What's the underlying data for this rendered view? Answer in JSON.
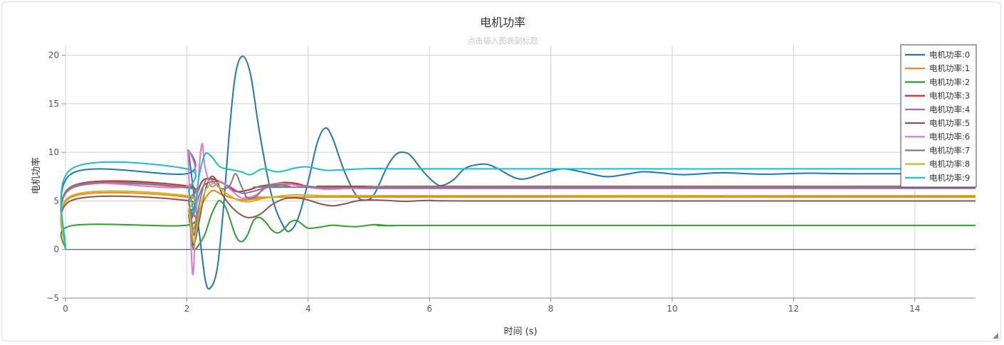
{
  "chart_data": {
    "type": "line",
    "title": "电机功率",
    "subtitle": "点击输入图表副标题",
    "xlabel": "时间 (s)",
    "ylabel": "电机功率",
    "xlim": [
      0,
      15
    ],
    "ylim": [
      -5,
      21
    ],
    "xticks": [
      0,
      2,
      4,
      6,
      8,
      10,
      12,
      14
    ],
    "yticks": [
      -5,
      0,
      5,
      10,
      15,
      20
    ],
    "grid": true,
    "legend_position": "top-right",
    "series": [
      {
        "name": "电机功率:0",
        "color": "#1f77b4",
        "points": [
          [
            0,
            0
          ],
          [
            0.1,
            7.8
          ],
          [
            2.0,
            7.8
          ],
          [
            2.02,
            10.2
          ],
          [
            2.1,
            6.5
          ],
          [
            2.2,
            2.0
          ],
          [
            2.3,
            -3.0
          ],
          [
            2.38,
            -4.0
          ],
          [
            2.5,
            -2.0
          ],
          [
            2.6,
            4.0
          ],
          [
            2.7,
            12.0
          ],
          [
            2.8,
            18.0
          ],
          [
            2.92,
            19.9
          ],
          [
            3.05,
            18.0
          ],
          [
            3.2,
            12.0
          ],
          [
            3.4,
            5.5
          ],
          [
            3.6,
            2.3
          ],
          [
            3.72,
            2.0
          ],
          [
            3.85,
            3.5
          ],
          [
            4.0,
            7.0
          ],
          [
            4.15,
            11.0
          ],
          [
            4.28,
            12.5
          ],
          [
            4.4,
            11.5
          ],
          [
            4.6,
            8.0
          ],
          [
            4.8,
            5.5
          ],
          [
            4.97,
            5.1
          ],
          [
            5.1,
            5.8
          ],
          [
            5.3,
            8.5
          ],
          [
            5.45,
            9.8
          ],
          [
            5.58,
            10.0
          ],
          [
            5.7,
            9.6
          ],
          [
            5.9,
            8.0
          ],
          [
            6.1,
            6.8
          ],
          [
            6.22,
            6.6
          ],
          [
            6.4,
            7.2
          ],
          [
            6.6,
            8.4
          ],
          [
            6.9,
            8.8
          ],
          [
            7.1,
            8.4
          ],
          [
            7.4,
            7.4
          ],
          [
            7.6,
            7.3
          ],
          [
            7.9,
            7.9
          ],
          [
            8.2,
            8.3
          ],
          [
            8.5,
            8.0
          ],
          [
            8.9,
            7.5
          ],
          [
            9.2,
            7.7
          ],
          [
            9.5,
            8.0
          ],
          [
            9.8,
            7.9
          ],
          [
            10.2,
            7.7
          ],
          [
            10.8,
            7.9
          ],
          [
            11.5,
            7.75
          ],
          [
            12.2,
            7.85
          ],
          [
            13.0,
            7.8
          ],
          [
            15.0,
            7.8
          ]
        ]
      },
      {
        "name": "电机功率:1",
        "color": "#ff7f0e",
        "points": [
          [
            0,
            0
          ],
          [
            0.1,
            5.4
          ],
          [
            2.0,
            5.4
          ],
          [
            2.03,
            4.0
          ],
          [
            2.1,
            2.0
          ],
          [
            2.2,
            4.0
          ],
          [
            2.4,
            6.0
          ],
          [
            2.6,
            5.6
          ],
          [
            2.9,
            5.1
          ],
          [
            3.3,
            5.3
          ],
          [
            4.0,
            5.4
          ],
          [
            15.0,
            5.4
          ]
        ]
      },
      {
        "name": "电机功率:2",
        "color": "#2ca02c",
        "points": [
          [
            0,
            0
          ],
          [
            0.1,
            2.45
          ],
          [
            2.0,
            2.5
          ],
          [
            2.03,
            4.0
          ],
          [
            2.08,
            1.0
          ],
          [
            2.12,
            0.0
          ],
          [
            2.2,
            0.5
          ],
          [
            2.3,
            1.6
          ],
          [
            2.4,
            3.5
          ],
          [
            2.5,
            4.8
          ],
          [
            2.55,
            5.0
          ],
          [
            2.65,
            4.2
          ],
          [
            2.8,
            1.5
          ],
          [
            2.9,
            0.8
          ],
          [
            3.0,
            1.5
          ],
          [
            3.1,
            3.0
          ],
          [
            3.2,
            3.3
          ],
          [
            3.3,
            2.8
          ],
          [
            3.4,
            2.0
          ],
          [
            3.5,
            1.7
          ],
          [
            3.6,
            2.1
          ],
          [
            3.7,
            2.8
          ],
          [
            3.8,
            3.0
          ],
          [
            3.9,
            2.6
          ],
          [
            4.0,
            2.2
          ],
          [
            4.2,
            2.3
          ],
          [
            4.4,
            2.5
          ],
          [
            4.6,
            2.4
          ],
          [
            4.8,
            2.35
          ],
          [
            5.1,
            2.55
          ],
          [
            5.4,
            2.45
          ],
          [
            6.0,
            2.48
          ],
          [
            15.0,
            2.48
          ]
        ]
      },
      {
        "name": "电机功率:3",
        "color": "#d62728",
        "points": [
          [
            0,
            0
          ],
          [
            0.1,
            6.5
          ],
          [
            2.0,
            6.55
          ],
          [
            2.03,
            5.0
          ],
          [
            2.08,
            3.2
          ],
          [
            2.15,
            5.2
          ],
          [
            2.25,
            7.0
          ],
          [
            2.4,
            7.3
          ],
          [
            2.6,
            6.8
          ],
          [
            2.8,
            6.0
          ],
          [
            3.0,
            6.1
          ],
          [
            3.2,
            6.5
          ],
          [
            3.4,
            6.7
          ],
          [
            3.6,
            6.9
          ],
          [
            3.8,
            6.8
          ],
          [
            4.0,
            6.5
          ],
          [
            4.3,
            6.4
          ],
          [
            4.6,
            6.5
          ],
          [
            5.0,
            6.5
          ],
          [
            15.0,
            6.5
          ]
        ]
      },
      {
        "name": "电机功率:4",
        "color": "#9467bd",
        "points": [
          [
            0,
            0
          ],
          [
            0.1,
            6.3
          ],
          [
            2.0,
            6.35
          ],
          [
            2.03,
            5.0
          ],
          [
            2.1,
            3.5
          ],
          [
            2.2,
            5.5
          ],
          [
            2.3,
            6.7
          ],
          [
            2.5,
            7.0
          ],
          [
            2.7,
            6.5
          ],
          [
            2.9,
            5.8
          ],
          [
            3.1,
            6.0
          ],
          [
            3.4,
            6.5
          ],
          [
            3.7,
            6.7
          ],
          [
            4.0,
            6.5
          ],
          [
            4.5,
            6.3
          ],
          [
            5.0,
            6.3
          ],
          [
            15.0,
            6.3
          ]
        ]
      },
      {
        "name": "电机功率:5",
        "color": "#8c564b",
        "points": [
          [
            0,
            0
          ],
          [
            0.1,
            5.05
          ],
          [
            2.0,
            5.05
          ],
          [
            2.03,
            3.5
          ],
          [
            2.08,
            1.5
          ],
          [
            2.12,
            0.5
          ],
          [
            2.2,
            2.8
          ],
          [
            2.3,
            6.0
          ],
          [
            2.4,
            7.5
          ],
          [
            2.5,
            7.0
          ],
          [
            2.6,
            5.5
          ],
          [
            2.8,
            4.0
          ],
          [
            3.0,
            3.3
          ],
          [
            3.2,
            3.6
          ],
          [
            3.4,
            4.6
          ],
          [
            3.6,
            5.2
          ],
          [
            3.8,
            5.3
          ],
          [
            4.0,
            5.1
          ],
          [
            4.2,
            4.7
          ],
          [
            4.4,
            4.5
          ],
          [
            4.6,
            4.7
          ],
          [
            4.8,
            5.0
          ],
          [
            5.0,
            5.1
          ],
          [
            5.3,
            5.05
          ],
          [
            5.6,
            4.95
          ],
          [
            6.0,
            5.05
          ],
          [
            7.0,
            5.0
          ],
          [
            15.0,
            5.0
          ]
        ]
      },
      {
        "name": "电机功率:6",
        "color": "#e377c2",
        "points": [
          [
            0,
            0
          ],
          [
            0.1,
            6.45
          ],
          [
            2.0,
            6.5
          ],
          [
            2.02,
            10.0
          ],
          [
            2.06,
            2.0
          ],
          [
            2.1,
            -2.6
          ],
          [
            2.14,
            2.0
          ],
          [
            2.2,
            8.0
          ],
          [
            2.25,
            10.9
          ],
          [
            2.3,
            8.5
          ],
          [
            2.4,
            6.5
          ],
          [
            2.55,
            7.0
          ],
          [
            2.7,
            6.3
          ],
          [
            2.9,
            5.3
          ],
          [
            3.1,
            5.5
          ],
          [
            3.3,
            6.3
          ],
          [
            3.5,
            6.8
          ],
          [
            3.7,
            6.7
          ],
          [
            4.0,
            6.4
          ],
          [
            4.3,
            6.2
          ],
          [
            4.7,
            6.3
          ],
          [
            5.2,
            6.5
          ],
          [
            6.0,
            6.45
          ],
          [
            15.0,
            6.45
          ]
        ]
      },
      {
        "name": "电机功率:7",
        "color": "#7f7f7f",
        "points": [
          [
            0,
            0
          ],
          [
            0.1,
            6.4
          ],
          [
            2.0,
            6.4
          ],
          [
            2.03,
            5.0
          ],
          [
            2.08,
            3.0
          ],
          [
            2.12,
            1.5
          ],
          [
            2.2,
            4.5
          ],
          [
            2.3,
            7.0
          ],
          [
            2.4,
            7.2
          ],
          [
            2.55,
            6.3
          ],
          [
            2.7,
            6.5
          ],
          [
            2.8,
            7.8
          ],
          [
            2.9,
            6.5
          ],
          [
            3.0,
            5.3
          ],
          [
            3.15,
            5.5
          ],
          [
            3.3,
            6.5
          ],
          [
            3.5,
            6.7
          ],
          [
            3.7,
            6.5
          ],
          [
            4.0,
            6.4
          ],
          [
            15.0,
            6.4
          ]
        ]
      },
      {
        "name": "电机功率:8",
        "color": "#bcbd22",
        "points": [
          [
            0,
            0
          ],
          [
            0.1,
            5.55
          ],
          [
            2.0,
            5.55
          ],
          [
            2.03,
            4.0
          ],
          [
            2.08,
            2.0
          ],
          [
            2.12,
            0.8
          ],
          [
            2.2,
            3.5
          ],
          [
            2.3,
            6.0
          ],
          [
            2.45,
            6.8
          ],
          [
            2.6,
            6.0
          ],
          [
            2.8,
            5.2
          ],
          [
            3.0,
            4.9
          ],
          [
            3.3,
            5.3
          ],
          [
            3.7,
            5.6
          ],
          [
            4.0,
            5.6
          ],
          [
            4.5,
            5.5
          ],
          [
            5.0,
            5.55
          ],
          [
            15.0,
            5.55
          ]
        ]
      },
      {
        "name": "电机功率:9",
        "color": "#17becf",
        "points": [
          [
            0,
            0
          ],
          [
            0.1,
            8.3
          ],
          [
            2.0,
            8.3
          ],
          [
            2.03,
            6.0
          ],
          [
            2.08,
            5.0
          ],
          [
            2.12,
            3.8
          ],
          [
            2.2,
            7.5
          ],
          [
            2.3,
            9.8
          ],
          [
            2.4,
            9.6
          ],
          [
            2.55,
            8.5
          ],
          [
            2.75,
            8.2
          ],
          [
            2.9,
            8.0
          ],
          [
            3.05,
            7.7
          ],
          [
            3.25,
            8.3
          ],
          [
            3.5,
            8.0
          ],
          [
            3.8,
            8.4
          ],
          [
            4.0,
            8.5
          ],
          [
            4.3,
            8.15
          ],
          [
            4.7,
            8.25
          ],
          [
            5.2,
            8.35
          ],
          [
            6.0,
            8.3
          ],
          [
            15.0,
            8.3
          ]
        ]
      }
    ]
  }
}
